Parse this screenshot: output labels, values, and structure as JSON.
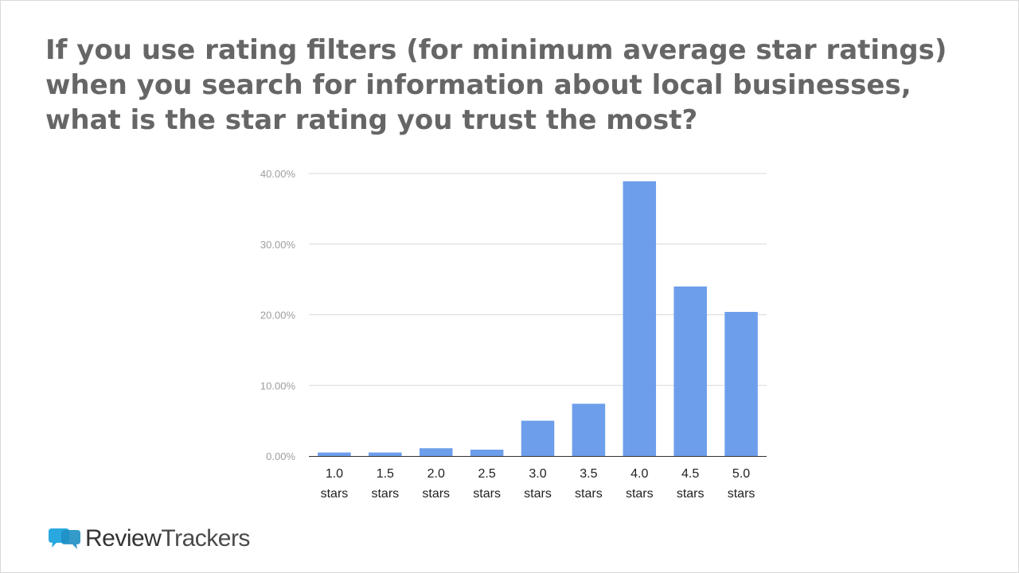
{
  "title": "If you use rating filters (for minimum average star ratings) when you search for information about local businesses, what is the star rating you trust the most?",
  "brand": {
    "name_part1": "Review",
    "name_part2": "Trackers",
    "icon": "speech-bubbles-icon",
    "color": "#29a8e0"
  },
  "chart_data": {
    "type": "bar",
    "categories": [
      [
        "1.0",
        "stars"
      ],
      [
        "1.5",
        "stars"
      ],
      [
        "2.0",
        "stars"
      ],
      [
        "2.5",
        "stars"
      ],
      [
        "3.0",
        "stars"
      ],
      [
        "3.5",
        "stars"
      ],
      [
        "4.0",
        "stars"
      ],
      [
        "4.5",
        "stars"
      ],
      [
        "5.0",
        "stars"
      ]
    ],
    "values": [
      0.5,
      0.5,
      1.1,
      0.9,
      5.0,
      7.4,
      38.9,
      24.0,
      20.4
    ],
    "yticks": [
      "0.00%",
      "10.00%",
      "20.00%",
      "30.00%",
      "40.00%"
    ],
    "ylim": [
      0,
      40
    ],
    "grid": true,
    "bar_color": "#6d9eeb",
    "title": "",
    "xlabel": "",
    "ylabel": ""
  }
}
